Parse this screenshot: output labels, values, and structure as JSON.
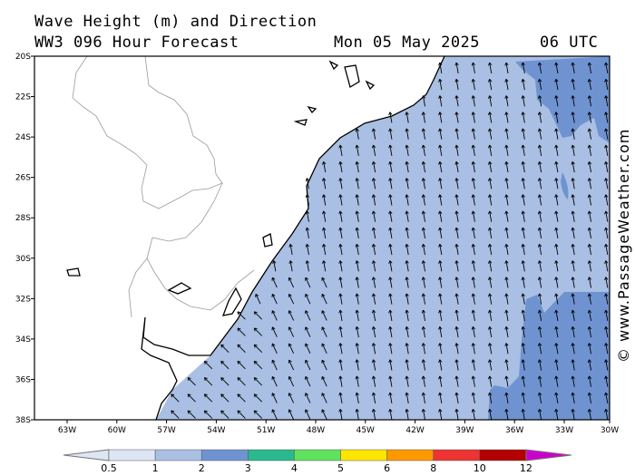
{
  "header": {
    "title": "Wave Height (m) and Direction",
    "model": "WW3 096 Hour Forecast",
    "date": "Mon 05 May 2025",
    "time": "06 UTC"
  },
  "map": {
    "lat_labels": [
      "20S",
      "22S",
      "24S",
      "26S",
      "28S",
      "30S",
      "32S",
      "34S",
      "36S",
      "38S"
    ],
    "lon_labels": [
      "63W",
      "60W",
      "57W",
      "54W",
      "51W",
      "48W",
      "45W",
      "42W",
      "39W",
      "36W",
      "33W",
      "30W"
    ],
    "colors": {
      "land": "#ffffff",
      "sea_1_2": "#a9bfe3",
      "sea_2_3": "#6f93d1",
      "coast": "#000000",
      "border": "#9a9a9a",
      "arrow": "#000000"
    },
    "wave_direction": "from south-east, arrows pointing north-north-west; south-west near the Rio de la Plata"
  },
  "legend": {
    "labels": [
      "0.5",
      "1",
      "2",
      "3",
      "4",
      "5",
      "6",
      "8",
      "10",
      "12"
    ],
    "colors": [
      "#dde6f4",
      "#a9bfe3",
      "#6f93d1",
      "#2ab88f",
      "#5fe35f",
      "#ffe600",
      "#ff9900",
      "#ee3333",
      "#b30000",
      "#cc00cc"
    ]
  },
  "watermark": "© www.PassageWeather.com"
}
